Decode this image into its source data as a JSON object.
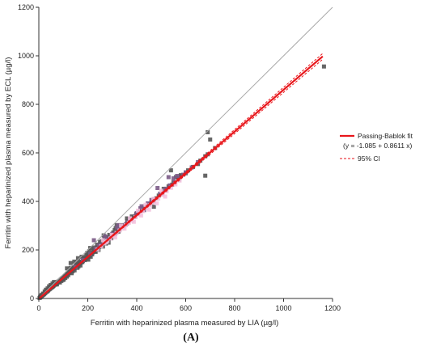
{
  "chart_data": {
    "type": "scatter",
    "xlabel": "Ferritin with heparinized plasma measured by LIA (µg/l)",
    "ylabel": "Ferritin with heparinized plasma measured by ECL (µg/l)",
    "xlim": [
      0,
      1200
    ],
    "ylim": [
      0,
      1200
    ],
    "xticks": [
      0,
      200,
      400,
      600,
      800,
      1000,
      1200
    ],
    "yticks": [
      0,
      200,
      400,
      600,
      800,
      1000,
      1200
    ],
    "grid": false,
    "legend_position": "right",
    "panel_label": "(A)",
    "identity_line": {
      "from": [
        0,
        0
      ],
      "to": [
        1200,
        1200
      ],
      "color": "#aaaaaa"
    },
    "fit": {
      "label": "Passing-Bablok fit",
      "equation": "(y = -1.085 + 0.8611 x)",
      "intercept": -1.085,
      "slope": 0.8611,
      "x_range": [
        0,
        1160
      ],
      "color": "#e8161b"
    },
    "ci": {
      "label": "95% CI",
      "lower": {
        "intercept": -1.5,
        "slope": 0.851
      },
      "upper": {
        "intercept": -0.7,
        "slope": 0.871
      },
      "x_range": [
        0,
        1160
      ],
      "color": "#e8161b"
    },
    "series": [
      {
        "marker": "square",
        "color": "#555555",
        "points": [
          [
            3,
            2
          ],
          [
            5,
            4
          ],
          [
            8,
            6
          ],
          [
            10,
            9
          ],
          [
            12,
            11
          ],
          [
            14,
            12
          ],
          [
            16,
            15
          ],
          [
            18,
            16
          ],
          [
            20,
            17
          ],
          [
            22,
            19
          ],
          [
            25,
            22
          ],
          [
            27,
            24
          ],
          [
            30,
            27
          ],
          [
            33,
            29
          ],
          [
            35,
            30
          ],
          [
            38,
            33
          ],
          [
            40,
            36
          ],
          [
            43,
            38
          ],
          [
            46,
            40
          ],
          [
            50,
            44
          ],
          [
            52,
            45
          ],
          [
            55,
            48
          ],
          [
            58,
            50
          ],
          [
            60,
            52
          ],
          [
            63,
            56
          ],
          [
            66,
            58
          ],
          [
            70,
            60
          ],
          [
            72,
            62
          ],
          [
            75,
            65
          ],
          [
            78,
            68
          ],
          [
            80,
            70
          ],
          [
            84,
            73
          ],
          [
            88,
            75
          ],
          [
            90,
            79
          ],
          [
            94,
            82
          ],
          [
            97,
            84
          ],
          [
            100,
            86
          ],
          [
            104,
            90
          ],
          [
            108,
            92
          ],
          [
            112,
            96
          ],
          [
            115,
            100
          ],
          [
            118,
            102
          ],
          [
            120,
            104
          ],
          [
            124,
            107
          ],
          [
            128,
            110
          ],
          [
            132,
            114
          ],
          [
            136,
            118
          ],
          [
            140,
            120
          ],
          [
            144,
            124
          ],
          [
            148,
            128
          ],
          [
            152,
            131
          ],
          [
            156,
            134
          ],
          [
            160,
            138
          ],
          [
            164,
            142
          ],
          [
            168,
            145
          ],
          [
            172,
            148
          ],
          [
            176,
            151
          ],
          [
            180,
            155
          ],
          [
            185,
            160
          ],
          [
            190,
            163
          ],
          [
            195,
            168
          ],
          [
            200,
            172
          ],
          [
            205,
            176
          ],
          [
            210,
            180
          ],
          [
            215,
            185
          ],
          [
            220,
            190
          ],
          [
            225,
            194
          ],
          [
            230,
            198
          ],
          [
            235,
            203
          ],
          [
            240,
            207
          ],
          [
            246,
            212
          ],
          [
            252,
            217
          ],
          [
            258,
            222
          ],
          [
            264,
            228
          ],
          [
            270,
            232
          ],
          [
            278,
            240
          ],
          [
            285,
            245
          ],
          [
            292,
            252
          ],
          [
            300,
            258
          ],
          [
            310,
            267
          ],
          [
            320,
            275
          ],
          [
            330,
            284
          ],
          [
            345,
            297
          ],
          [
            360,
            310
          ],
          [
            375,
            323
          ],
          [
            390,
            336
          ],
          [
            405,
            349
          ],
          [
            420,
            362
          ],
          [
            440,
            378
          ],
          [
            460,
            396
          ],
          [
            480,
            413
          ],
          [
            500,
            430
          ],
          [
            520,
            448
          ],
          [
            545,
            469
          ],
          [
            570,
            490
          ],
          [
            600,
            516
          ],
          [
            630,
            542
          ],
          [
            660,
            568
          ],
          [
            690,
            594
          ],
          [
            720,
            620
          ],
          [
            6,
            8
          ],
          [
            11,
            14
          ],
          [
            17,
            20
          ],
          [
            24,
            29
          ],
          [
            29,
            36
          ],
          [
            36,
            42
          ],
          [
            42,
            50
          ],
          [
            48,
            55
          ],
          [
            56,
            62
          ],
          [
            62,
            68
          ],
          [
            68,
            57
          ],
          [
            74,
            58
          ],
          [
            82,
            68
          ],
          [
            86,
            66
          ],
          [
            92,
            72
          ],
          [
            98,
            76
          ],
          [
            102,
            78
          ],
          [
            108,
            85
          ],
          [
            114,
            90
          ],
          [
            120,
            96
          ],
          [
            126,
            118
          ],
          [
            130,
            126
          ],
          [
            134,
            104
          ],
          [
            138,
            112
          ],
          [
            142,
            128
          ],
          [
            146,
            116
          ],
          [
            150,
            140
          ],
          [
            154,
            148
          ],
          [
            158,
            126
          ],
          [
            162,
            132
          ],
          [
            166,
            152
          ],
          [
            170,
            136
          ],
          [
            178,
            150
          ],
          [
            182,
            170
          ],
          [
            188,
            158
          ],
          [
            194,
            178
          ],
          [
            198,
            188
          ],
          [
            202,
            160
          ],
          [
            206,
            195
          ],
          [
            212,
            172
          ],
          [
            218,
            182
          ],
          [
            224,
            204
          ],
          [
            232,
            192
          ],
          [
            238,
            222
          ],
          [
            244,
            200
          ],
          [
            250,
            232
          ],
          [
            256,
            236
          ],
          [
            262,
            214
          ],
          [
            268,
            250
          ],
          [
            274,
            226
          ],
          [
            282,
            252
          ],
          [
            288,
            262
          ],
          [
            296,
            248
          ],
          [
            304,
            272
          ],
          [
            314,
            290
          ],
          [
            318,
            302
          ],
          [
            326,
            276
          ],
          [
            336,
            298
          ],
          [
            350,
            302
          ],
          [
            362,
            318
          ],
          [
            380,
            338
          ],
          [
            398,
            348
          ],
          [
            412,
            360
          ],
          [
            430,
            372
          ],
          [
            450,
            388
          ],
          [
            470,
            402
          ],
          [
            490,
            424
          ],
          [
            510,
            452
          ],
          [
            530,
            462
          ],
          [
            550,
            478
          ],
          [
            580,
            504
          ],
          [
            610,
            528
          ],
          [
            650,
            554
          ],
          [
            680,
            586
          ],
          [
            210,
            208
          ],
          [
            225,
            210
          ],
          [
            240,
            212
          ],
          [
            130,
            146
          ],
          [
            115,
            124
          ],
          [
            145,
            152
          ],
          [
            160,
            166
          ],
          [
            175,
            172
          ],
          [
            250,
            222
          ],
          [
            265,
            260
          ],
          [
            285,
            230
          ],
          [
            295,
            256
          ],
          [
            310,
            282
          ],
          [
            335,
            302
          ],
          [
            360,
            330
          ],
          [
            540,
            528
          ],
          [
            560,
            500
          ],
          [
            580,
            508
          ],
          [
            690,
            685
          ],
          [
            700,
            655
          ],
          [
            680,
            506
          ],
          [
            470,
            378
          ],
          [
            1165,
            956
          ]
        ]
      },
      {
        "marker": "square",
        "color": "#7a5a86",
        "points": [
          [
            150,
            130
          ],
          [
            180,
            158
          ],
          [
            210,
            184
          ],
          [
            232,
            204
          ],
          [
            255,
            222
          ],
          [
            270,
            256
          ],
          [
            290,
            250
          ],
          [
            300,
            266
          ],
          [
            315,
            270
          ],
          [
            325,
            302
          ],
          [
            340,
            296
          ],
          [
            355,
            305
          ],
          [
            372,
            328
          ],
          [
            395,
            340
          ],
          [
            415,
            372
          ],
          [
            430,
            364
          ],
          [
            460,
            406
          ],
          [
            485,
            455
          ],
          [
            505,
            430
          ],
          [
            520,
            452
          ],
          [
            530,
            500
          ],
          [
            550,
            495
          ],
          [
            565,
            505
          ],
          [
            590,
            510
          ],
          [
            225,
            240
          ],
          [
            245,
            218
          ],
          [
            265,
            234
          ],
          [
            280,
            244
          ],
          [
            305,
            262
          ],
          [
            320,
            292
          ],
          [
            345,
            300
          ],
          [
            365,
            316
          ],
          [
            380,
            324
          ],
          [
            400,
            352
          ],
          [
            420,
            380
          ],
          [
            445,
            392
          ],
          [
            470,
            410
          ],
          [
            495,
            432
          ],
          [
            515,
            446
          ],
          [
            535,
            466
          ],
          [
            555,
            478
          ],
          [
            575,
            496
          ],
          [
            600,
            520
          ],
          [
            625,
            540
          ],
          [
            650,
            562
          ]
        ]
      },
      {
        "marker": "square",
        "color": "#f2bfdc",
        "points": [
          [
            240,
            202
          ],
          [
            255,
            215
          ],
          [
            268,
            227
          ],
          [
            280,
            238
          ],
          [
            292,
            247
          ],
          [
            305,
            258
          ],
          [
            318,
            270
          ],
          [
            330,
            280
          ],
          [
            342,
            290
          ],
          [
            355,
            302
          ],
          [
            368,
            312
          ],
          [
            380,
            322
          ],
          [
            395,
            335
          ],
          [
            410,
            346
          ],
          [
            425,
            360
          ],
          [
            440,
            372
          ],
          [
            455,
            384
          ],
          [
            470,
            396
          ],
          [
            488,
            412
          ],
          [
            505,
            428
          ],
          [
            522,
            442
          ],
          [
            540,
            456
          ],
          [
            558,
            470
          ],
          [
            575,
            486
          ],
          [
            262,
            240
          ],
          [
            276,
            232
          ],
          [
            298,
            262
          ],
          [
            312,
            252
          ],
          [
            336,
            300
          ],
          [
            350,
            288
          ],
          [
            372,
            330
          ],
          [
            388,
            316
          ],
          [
            405,
            362
          ],
          [
            418,
            342
          ],
          [
            436,
            386
          ],
          [
            450,
            366
          ],
          [
            468,
            410
          ],
          [
            482,
            392
          ],
          [
            500,
            444
          ],
          [
            516,
            420
          ]
        ]
      }
    ]
  }
}
